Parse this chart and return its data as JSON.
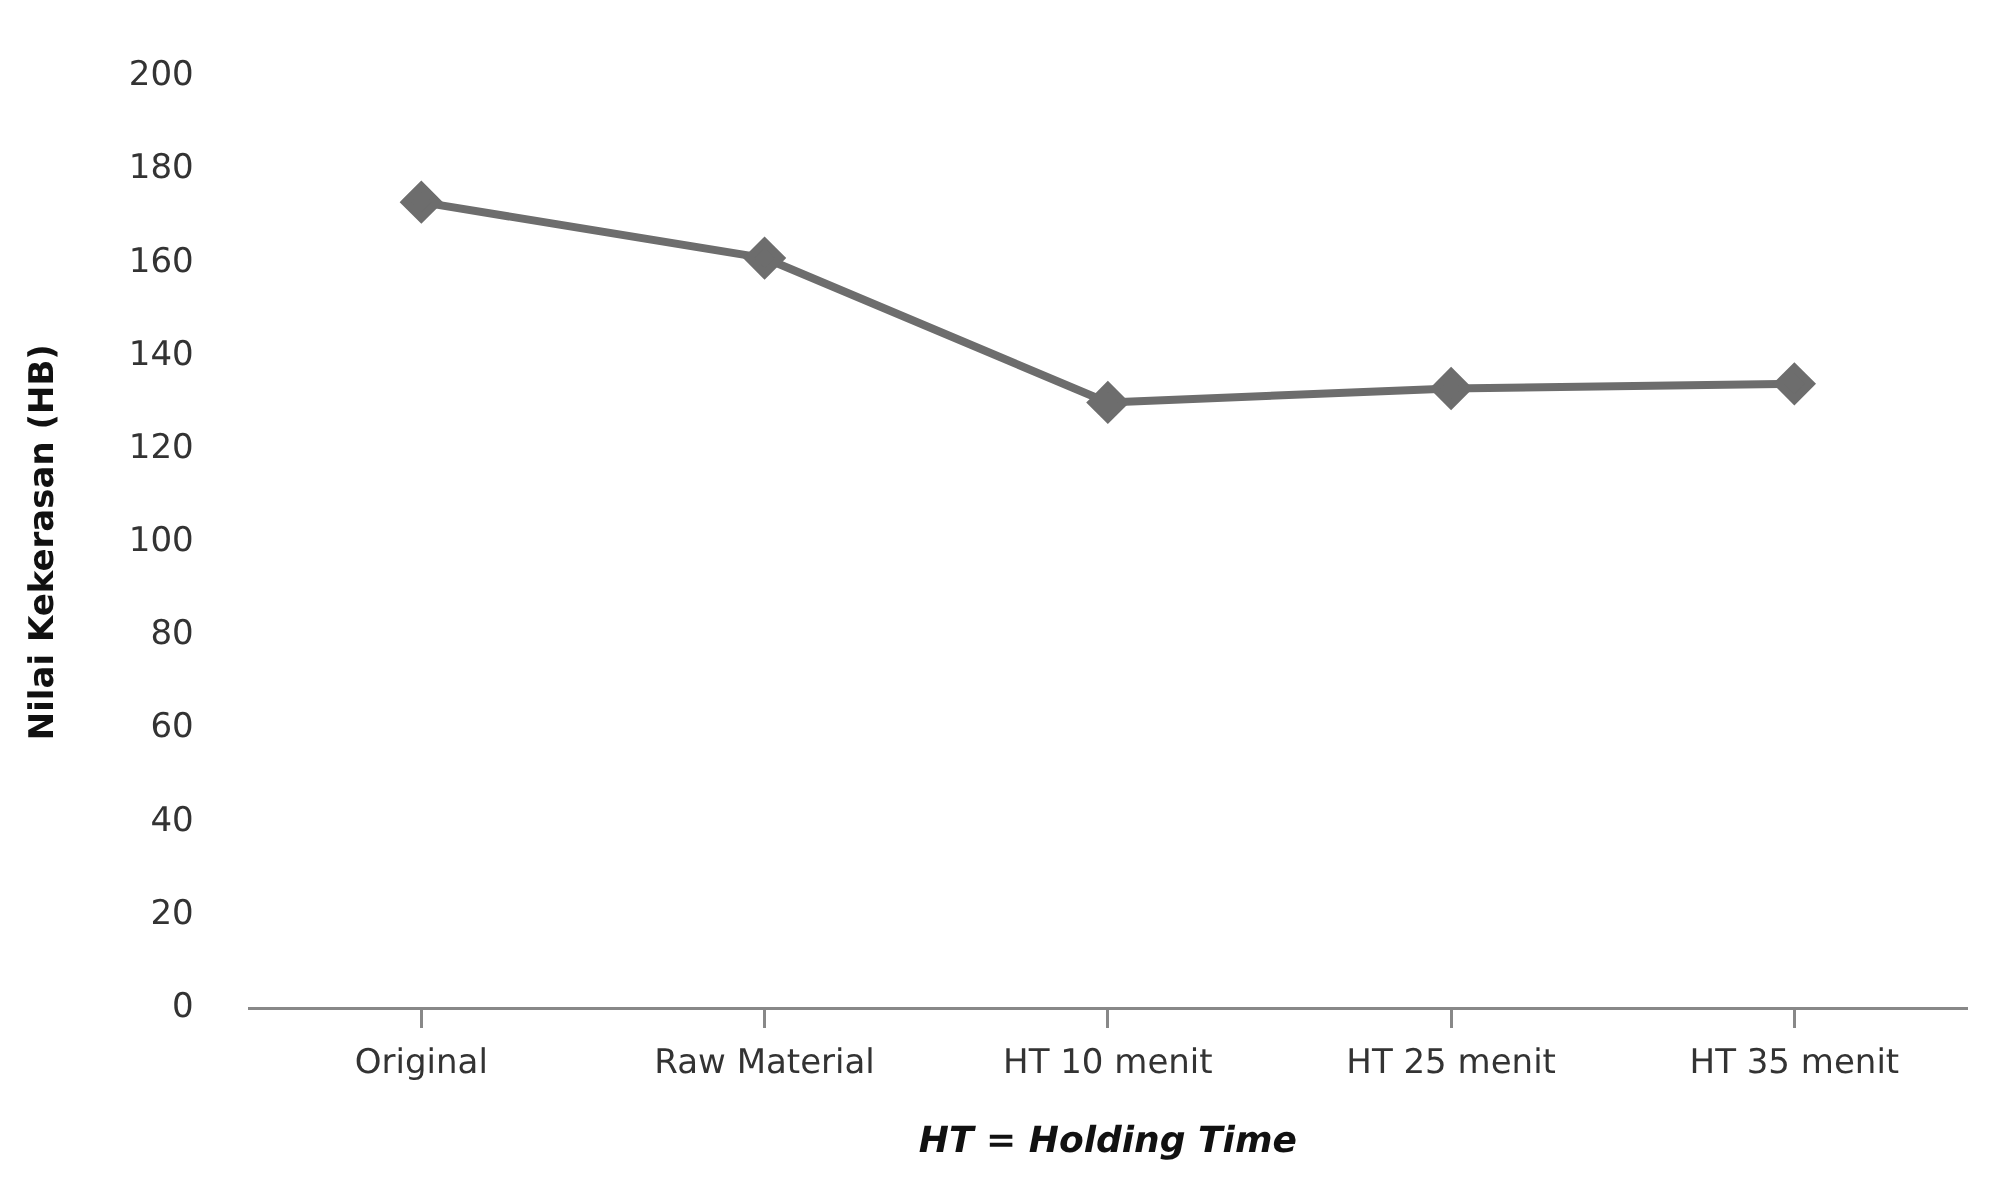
{
  "chart_data": {
    "type": "line",
    "xlabel": "HT = Holding Time",
    "ylabel": "Nilai Kekerasan (HB)",
    "categories": [
      "Original",
      "Raw Material",
      "HT 10 menit",
      "HT 25 menit",
      "HT 35 menit"
    ],
    "series": [
      {
        "color": "#6d6d6d",
        "values": [
          173,
          161,
          130,
          133,
          134
        ]
      }
    ],
    "ylim": [
      0,
      200
    ],
    "yticks": [
      0,
      20,
      40,
      60,
      80,
      100,
      120,
      140,
      160,
      180,
      200
    ],
    "grid": false,
    "legend": false,
    "marker": "diamond",
    "line_style": "solid"
  }
}
